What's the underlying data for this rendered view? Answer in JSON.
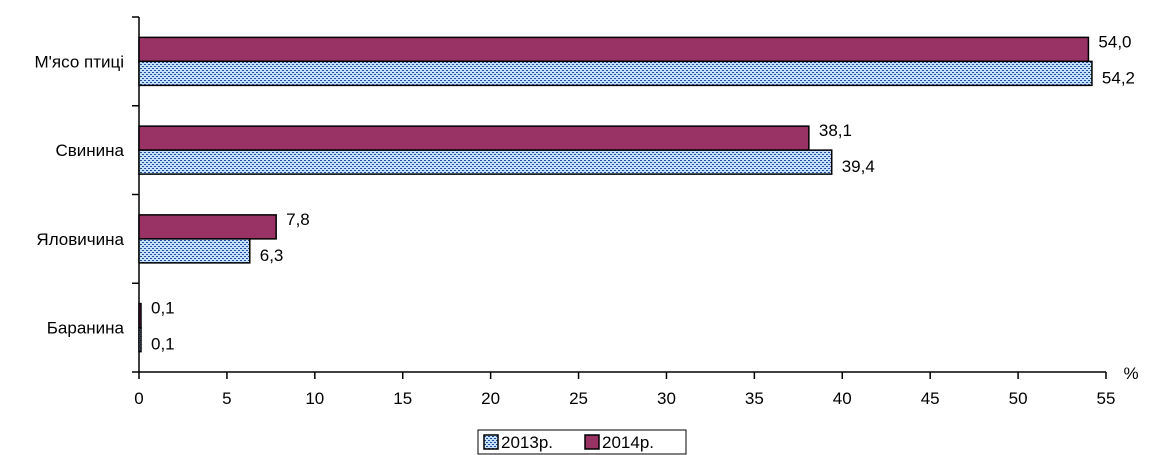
{
  "chart_data": {
    "type": "bar",
    "orientation": "horizontal",
    "categories": [
      "Баранина",
      "Яловичина",
      "Свинина",
      "М'ясо птиці"
    ],
    "series": [
      {
        "name": "2013р.",
        "values": [
          0.1,
          6.3,
          39.4,
          54.2
        ],
        "labels": [
          "0,1",
          "6,3",
          "39,4",
          "54,2"
        ],
        "fill": "#c6e0ff",
        "pattern_color": "#1f4e9c"
      },
      {
        "name": "2014р.",
        "values": [
          0.1,
          7.8,
          38.1,
          54.0
        ],
        "labels": [
          "0,1",
          "7,8",
          "38,1",
          "54,0"
        ],
        "fill": "#993366"
      }
    ],
    "xlim": [
      0,
      55
    ],
    "xticks": [
      "0",
      "5",
      "10",
      "15",
      "20",
      "25",
      "30",
      "35",
      "40",
      "45",
      "50",
      "55"
    ],
    "xunit": "%",
    "grid": false,
    "legend_placement": "bottom"
  }
}
